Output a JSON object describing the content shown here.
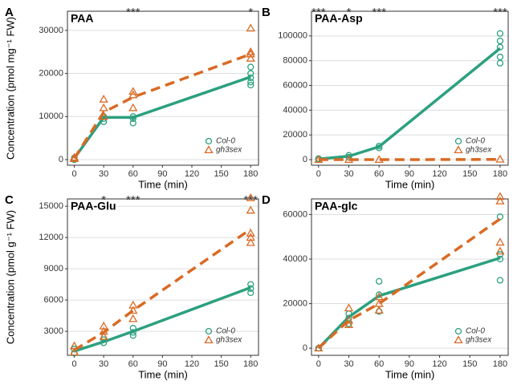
{
  "chart_data": [
    {
      "type": "line",
      "label": "A",
      "title": "PAA",
      "xlabel": "Time (min)",
      "ylabel": "Concentration (pmol mg⁻¹ FW)",
      "x": [
        0,
        30,
        60,
        180
      ],
      "xlim": [
        -7,
        188
      ],
      "xticks": [
        0,
        30,
        60,
        90,
        120,
        150,
        180
      ],
      "ylim": [
        -1300,
        34450
      ],
      "yticks": [
        0,
        10000,
        20000,
        30000
      ],
      "grid": true,
      "legend": "lower right",
      "series": [
        {
          "name": "Col-0",
          "color": "#2ca07f",
          "dash": false,
          "marker": "circle",
          "values": [
            300,
            9800,
            9800,
            19200
          ],
          "points": {
            "x": [
              0,
              0,
              30,
              30,
              30,
              60,
              60,
              60,
              180,
              180,
              180,
              180,
              180
            ],
            "y": [
              0,
              400,
              8800,
              9500,
              10000,
              8500,
              9500,
              10000,
              17300,
              18000,
              19000,
              20000,
              21500
            ]
          }
        },
        {
          "name": "gh3sex",
          "color": "#d96a24",
          "dash": true,
          "marker": "triangle",
          "values": [
            300,
            11000,
            14500,
            24500
          ],
          "points": {
            "x": [
              0,
              0,
              30,
              30,
              30,
              60,
              60,
              60,
              180,
              180,
              180,
              180
            ],
            "y": [
              200,
              500,
              10000,
              12000,
              14000,
              12000,
              15000,
              15800,
              23500,
              24500,
              25000,
              30500
            ]
          }
        }
      ],
      "annotations": [
        {
          "x": 60,
          "text": "***"
        },
        {
          "x": 180,
          "text": "*"
        }
      ]
    },
    {
      "type": "line",
      "label": "B",
      "title": "PAA-Asp",
      "xlabel": "Time (min)",
      "x": [
        0,
        30,
        60,
        180
      ],
      "xlim": [
        -7,
        188
      ],
      "xticks": [
        0,
        30,
        60,
        90,
        120,
        150,
        180
      ],
      "ylim": [
        -4500,
        120000
      ],
      "yticks": [
        0,
        20000,
        40000,
        60000,
        80000,
        100000
      ],
      "grid": true,
      "legend": "lower right",
      "series": [
        {
          "name": "Col-0",
          "color": "#2ca07f",
          "dash": false,
          "marker": "circle",
          "values": [
            500,
            2800,
            10500,
            90000
          ],
          "points": {
            "x": [
              0,
              0,
              30,
              30,
              60,
              60,
              180,
              180,
              180,
              180,
              180
            ],
            "y": [
              300,
              800,
              2000,
              3500,
              9500,
              11000,
              78000,
              83000,
              91000,
              96000,
              102000
            ]
          }
        },
        {
          "name": "gh3sex",
          "color": "#d96a24",
          "dash": true,
          "marker": "triangle",
          "values": [
            0,
            0,
            0,
            200
          ],
          "points": {
            "x": [
              0,
              30,
              60,
              180
            ],
            "y": [
              0,
              0,
              0,
              300
            ]
          }
        }
      ],
      "annotations": [
        {
          "x": 0,
          "text": "***"
        },
        {
          "x": 30,
          "text": "*"
        },
        {
          "x": 60,
          "text": "***"
        },
        {
          "x": 180,
          "text": "***"
        }
      ]
    },
    {
      "type": "line",
      "label": "C",
      "title": "PAA-Glu",
      "xlabel": "Time (min)",
      "ylabel": "Concentration (pmol g⁻¹ FW)",
      "x": [
        0,
        30,
        60,
        180
      ],
      "xlim": [
        -7,
        188
      ],
      "xticks": [
        0,
        30,
        60,
        90,
        120,
        150,
        180
      ],
      "ylim": [
        700,
        15700
      ],
      "yticks": [
        3000,
        6000,
        9000,
        12000,
        15000
      ],
      "grid": true,
      "legend": "lower right",
      "series": [
        {
          "name": "Col-0",
          "color": "#2ca07f",
          "dash": false,
          "marker": "circle",
          "values": [
            1100,
            2000,
            3000,
            7200
          ],
          "points": {
            "x": [
              0,
              0,
              30,
              30,
              60,
              60,
              60,
              180,
              180,
              180
            ],
            "y": [
              900,
              1300,
              1900,
              2200,
              2600,
              2900,
              3300,
              6700,
              7100,
              7500
            ]
          }
        },
        {
          "name": "gh3sex",
          "color": "#d96a24",
          "dash": true,
          "marker": "triangle",
          "values": [
            1200,
            2900,
            5000,
            12800
          ],
          "points": {
            "x": [
              0,
              0,
              30,
              30,
              30,
              60,
              60,
              60,
              180,
              180,
              180,
              180,
              180
            ],
            "y": [
              1000,
              1600,
              2500,
              3000,
              3500,
              4200,
              5000,
              5500,
              11500,
              12000,
              12400,
              14600,
              15800
            ]
          }
        }
      ],
      "annotations": [
        {
          "x": 30,
          "text": "*"
        },
        {
          "x": 60,
          "text": "***"
        },
        {
          "x": 180,
          "text": "***"
        }
      ]
    },
    {
      "type": "line",
      "label": "D",
      "title": "PAA-glc",
      "xlabel": "Time (min)",
      "x": [
        0,
        30,
        60,
        180
      ],
      "xlim": [
        -7,
        188
      ],
      "xticks": [
        0,
        30,
        60,
        90,
        120,
        150,
        180
      ],
      "ylim": [
        -3200,
        67000
      ],
      "yticks": [
        0,
        20000,
        40000,
        60000
      ],
      "grid": true,
      "legend": "lower right",
      "series": [
        {
          "name": "Col-0",
          "color": "#2ca07f",
          "dash": false,
          "marker": "circle",
          "values": [
            0,
            14000,
            23500,
            40500
          ],
          "points": {
            "x": [
              0,
              30,
              30,
              30,
              60,
              60,
              60,
              180,
              180,
              180,
              180
            ],
            "y": [
              0,
              11000,
              13500,
              15500,
              16500,
              24000,
              30000,
              30500,
              40000,
              42000,
              59000
            ]
          }
        },
        {
          "name": "gh3sex",
          "color": "#d96a24",
          "dash": true,
          "marker": "triangle",
          "values": [
            0,
            12500,
            20000,
            58000
          ],
          "points": {
            "x": [
              0,
              30,
              30,
              30,
              60,
              60,
              60,
              180,
              180,
              180,
              180
            ],
            "y": [
              0,
              10500,
              12500,
              18000,
              17000,
              20000,
              23000,
              43500,
              47500,
              66000,
              68000
            ]
          }
        }
      ],
      "annotations": []
    }
  ]
}
